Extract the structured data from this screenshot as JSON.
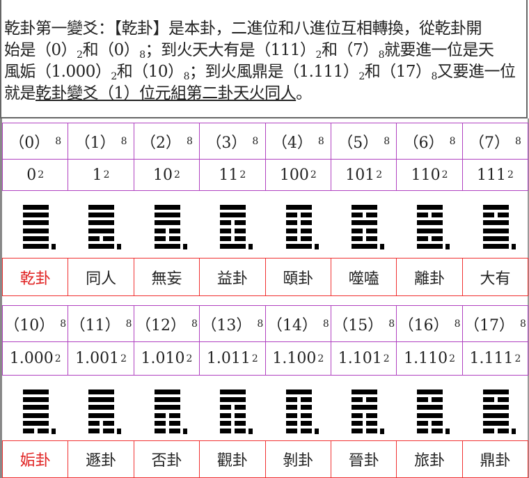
{
  "intro": {
    "line1": "乾卦第一變爻：【乾卦】是本卦，二進位和八進位互相轉換，從乾卦開",
    "line2_a": "始是（0）",
    "line2_b": "和（0）",
    "line2_c": "；到火天大有是（111）",
    "line2_d": "和（7）",
    "line2_e": "就要進一位是天",
    "line3_a": "風姤（1.000）",
    "line3_b": "和（10）",
    "line3_c": "；到火風鼎是（1.111）",
    "line3_d": "和（17）",
    "line3_e": "又要進一位",
    "line4_a": "就是",
    "line4_u": "乾卦變爻（1）位元組第二卦天火同人",
    "line4_end": "。",
    "sub2": "2",
    "sub8": "8"
  },
  "blocks": [
    {
      "octal": [
        "0",
        "1",
        "2",
        "3",
        "4",
        "5",
        "6",
        "7"
      ],
      "binary": [
        "0",
        "1",
        "10",
        "11",
        "100",
        "101",
        "110",
        "111"
      ],
      "hexagrams": [
        "111111",
        "111101",
        "111001",
        "110001",
        "100001",
        "101001",
        "101101",
        "101111"
      ],
      "names": [
        "乾卦",
        "同人",
        "無妄",
        "益卦",
        "頤卦",
        "噬嗑",
        "離卦",
        "大有"
      ]
    },
    {
      "octal": [
        "10",
        "11",
        "12",
        "13",
        "14",
        "15",
        "16",
        "17"
      ],
      "binary": [
        "1.000",
        "1.001",
        "1.010",
        "1.011",
        "1.100",
        "1.101",
        "1.110",
        "1.111"
      ],
      "hexagrams": [
        "111110",
        "111100",
        "111000",
        "110000",
        "100000",
        "101000",
        "101100",
        "101110"
      ],
      "names": [
        "姤卦",
        "遯卦",
        "否卦",
        "觀卦",
        "剝卦",
        "晉卦",
        "旅卦",
        "鼎卦"
      ]
    }
  ],
  "base_octal": "8",
  "base_binary": "2",
  "colors": {
    "highlight_name": "#e02020",
    "cell_border": "#b040c0",
    "name_border": "#f03030"
  }
}
